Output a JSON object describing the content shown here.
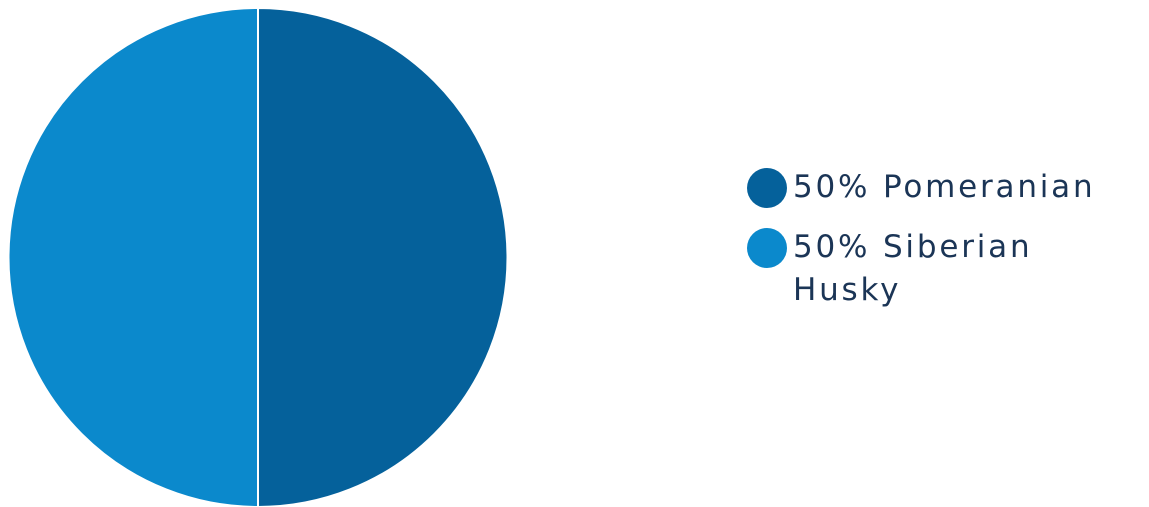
{
  "chart_data": {
    "type": "pie",
    "slices": [
      {
        "label": "Pomeranian",
        "percent": 50,
        "color": "#05619b"
      },
      {
        "label": "Siberian Husky",
        "percent": 50,
        "color": "#0b89cc"
      }
    ],
    "legend": {
      "placement": "right",
      "entries": [
        {
          "text": "50% Pomeranian",
          "color": "#05619b"
        },
        {
          "text": "50% Siberian Husky",
          "color": "#0b89cc"
        }
      ]
    }
  }
}
